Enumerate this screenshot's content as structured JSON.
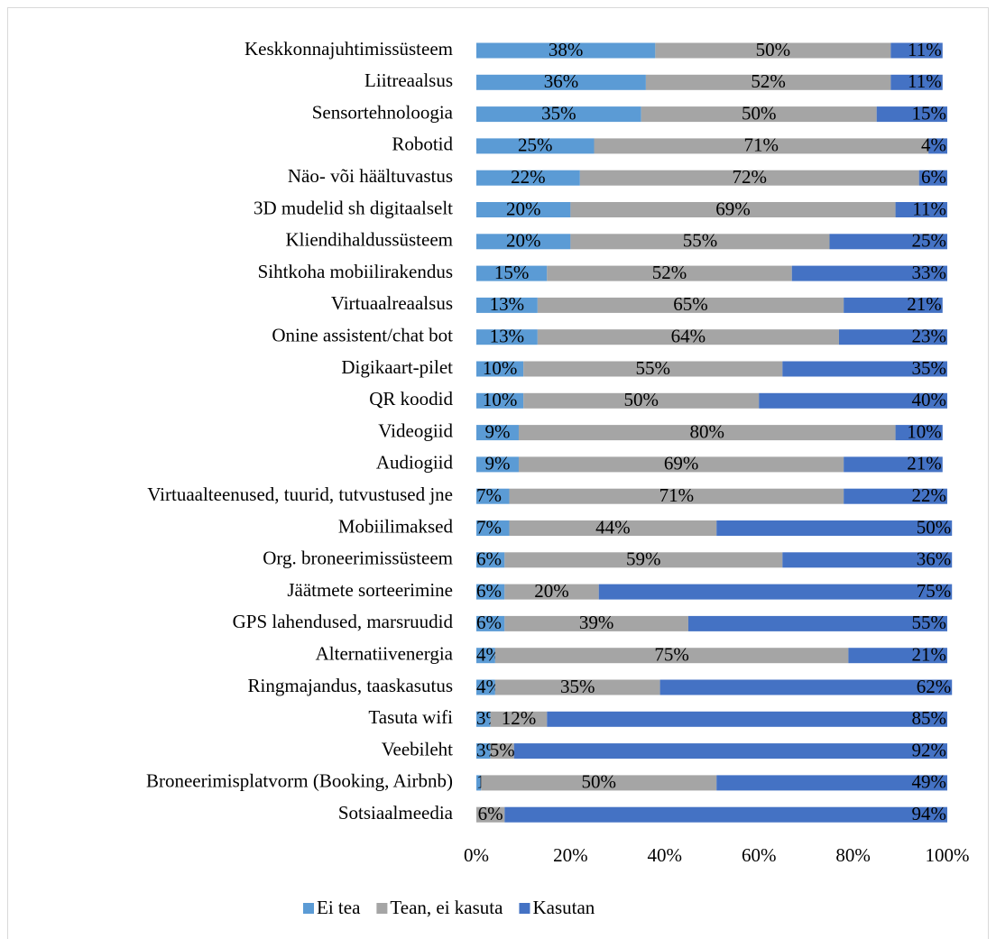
{
  "chart_data": {
    "type": "stacked_barh",
    "categories": [
      "Keskkonnajuhtimissüsteem",
      "Liitreaalsus",
      "Sensortehnoloogia",
      "Robotid",
      "Näo- või häältuvastus",
      "3D mudelid sh digitaalselt",
      "Kliendihaldussüsteem",
      "Sihtkoha mobiilirakendus",
      "Virtuaalreaalsus",
      "Onine assistent/chat bot",
      "Digikaart-pilet",
      "QR koodid",
      "Videogiid",
      "Audiogiid",
      "Virtuaalteenused, tuurid, tutvustused jne",
      "Mobiilimaksed",
      "Org. broneerimissüsteem",
      "Jäätmete sorteerimine",
      "GPS lahendused, marsruudid",
      "Alternatiivenergia",
      "Ringmajandus, taaskasutus",
      "Tasuta wifi",
      "Veebileht",
      "Broneerimisplatvorm (Booking, Airbnb)",
      "Sotsiaalmeedia"
    ],
    "series": [
      {
        "name": "Ei tea",
        "color": "#5b9bd5",
        "values": [
          38,
          36,
          35,
          25,
          22,
          20,
          20,
          15,
          13,
          13,
          10,
          10,
          9,
          9,
          7,
          7,
          6,
          6,
          6,
          4,
          4,
          3,
          3,
          1,
          0
        ],
        "value_labels": [
          "38%",
          "36%",
          "35%",
          "25%",
          "22%",
          "20%",
          "20%",
          "15%",
          "13%",
          "13%",
          "10%",
          "10%",
          "9%",
          "9%",
          "7%",
          "7%",
          "6%",
          "6%",
          "6%",
          "4%",
          "4%",
          "3%",
          "3%",
          "1%",
          "0%"
        ]
      },
      {
        "name": "Tean, ei kasuta",
        "color": "#a5a5a5",
        "values": [
          50,
          52,
          50,
          71,
          72,
          69,
          55,
          52,
          65,
          64,
          55,
          50,
          80,
          69,
          71,
          44,
          59,
          20,
          39,
          75,
          35,
          12,
          5,
          50,
          6
        ],
        "value_labels": [
          "50%",
          "52%",
          "50%",
          "71%",
          "72%",
          "69%",
          "55%",
          "52%",
          "65%",
          "64%",
          "55%",
          "50%",
          "80%",
          "69%",
          "71%",
          "44%",
          "59%",
          "20%",
          "39%",
          "75%",
          "35%",
          "12%",
          "5%",
          "50%",
          "6%"
        ]
      },
      {
        "name": "Kasutan",
        "color": "#4472c4",
        "values": [
          11,
          11,
          15,
          4,
          6,
          11,
          25,
          33,
          21,
          23,
          35,
          40,
          10,
          21,
          22,
          50,
          36,
          75,
          55,
          21,
          62,
          85,
          92,
          49,
          94
        ],
        "value_labels": [
          "11%",
          "11%",
          "15%",
          "4%",
          "6%",
          "11%",
          "25%",
          "33%",
          "21%",
          "23%",
          "35%",
          "40%",
          "10%",
          "21%",
          "22%",
          "50%",
          "36%",
          "75%",
          "55%",
          "21%",
          "62%",
          "85%",
          "92%",
          "49%",
          "94%"
        ]
      }
    ],
    "xlim": [
      0,
      100
    ],
    "xticks": [
      {
        "value": 0,
        "label": "0%"
      },
      {
        "value": 20,
        "label": "20%"
      },
      {
        "value": 40,
        "label": "40%"
      },
      {
        "value": 60,
        "label": "60%"
      },
      {
        "value": 80,
        "label": "80%"
      },
      {
        "value": 100,
        "label": "100%"
      }
    ],
    "legend": "bottom"
  }
}
